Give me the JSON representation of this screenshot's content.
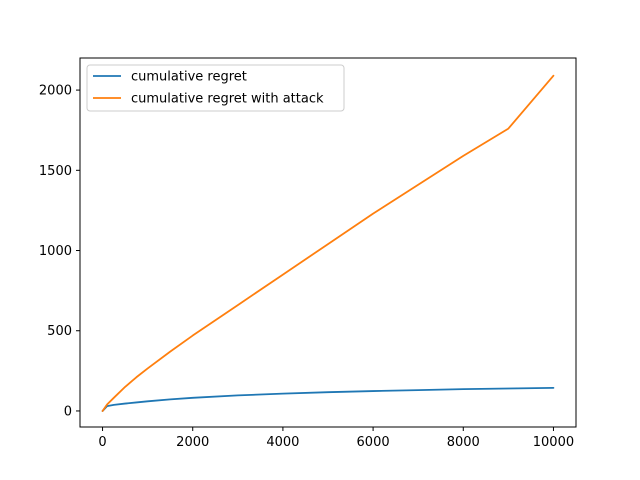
{
  "chart_data": {
    "type": "line",
    "title": "",
    "xlabel": "",
    "ylabel": "",
    "xlim": [
      -500,
      10500
    ],
    "ylim": [
      -100,
      2200
    ],
    "xticks": [
      0,
      2000,
      4000,
      6000,
      8000,
      10000
    ],
    "yticks": [
      0,
      500,
      1000,
      1500,
      2000
    ],
    "grid": false,
    "legend_position": "upper-left",
    "x": [
      0,
      100,
      250,
      500,
      750,
      1000,
      1500,
      2000,
      3000,
      4000,
      5000,
      6000,
      7000,
      8000,
      9000,
      10000
    ],
    "series": [
      {
        "name": "cumulative regret",
        "color": "#1f77b4",
        "values": [
          0,
          30,
          38,
          46,
          53,
          60,
          72,
          82,
          97,
          108,
          117,
          124,
          130,
          136,
          140,
          144
        ]
      },
      {
        "name": "cumulative regret with attack",
        "color": "#ff7f0e",
        "values": [
          0,
          40,
          82,
          150,
          210,
          265,
          370,
          470,
          660,
          850,
          1040,
          1230,
          1410,
          1590,
          1760,
          2090
        ]
      }
    ]
  }
}
